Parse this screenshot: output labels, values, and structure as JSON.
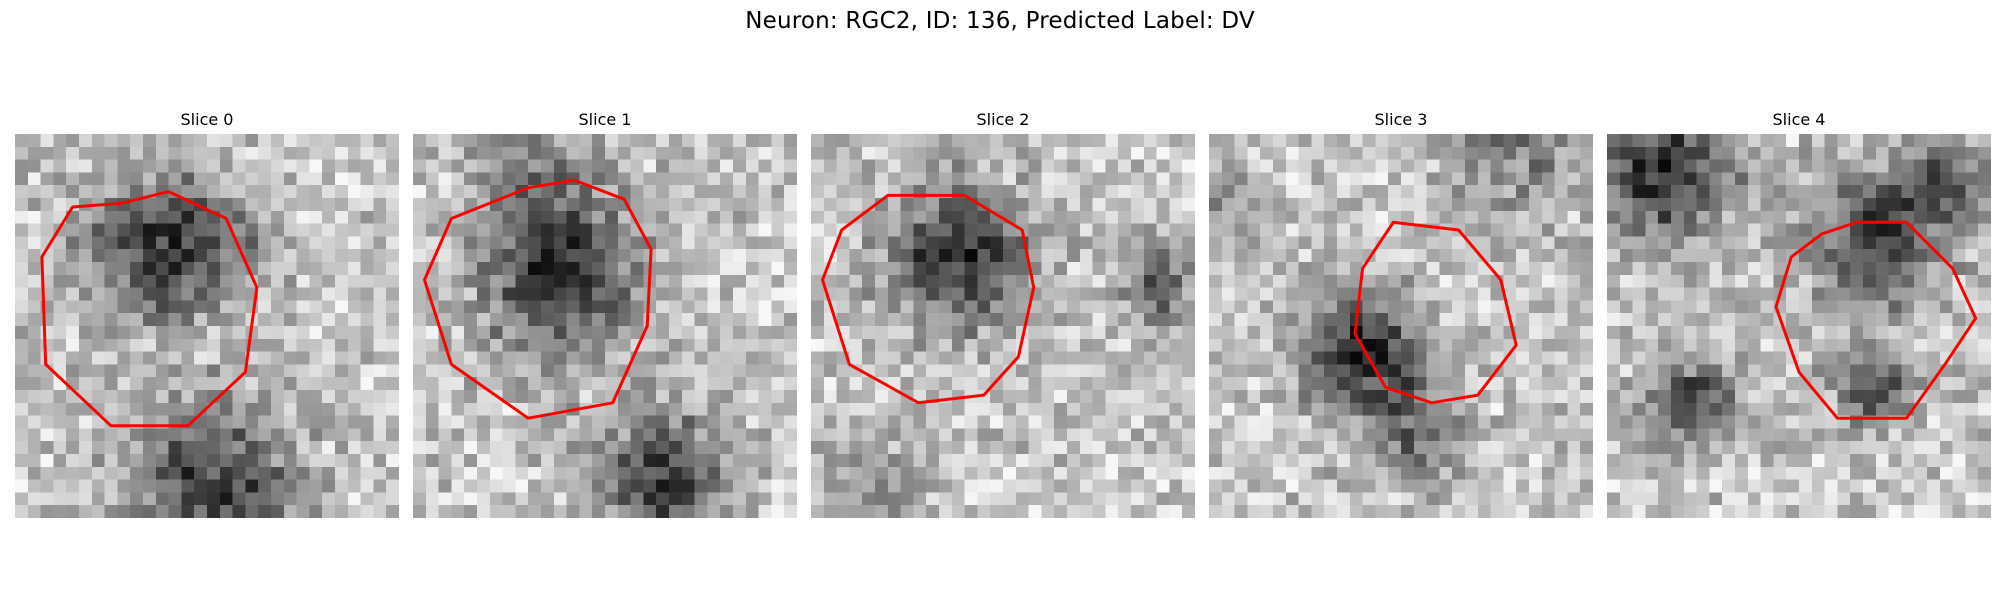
{
  "figure": {
    "title": "Neuron: RGC2, ID: 136, Predicted Label: DV"
  },
  "panels": [
    {
      "title": "Slice 0",
      "seed": 11,
      "blobs": [
        [
          0.38,
          0.3,
          0.22,
          0.95
        ],
        [
          0.52,
          0.92,
          0.26,
          0.85
        ],
        [
          0.6,
          0.28,
          0.12,
          0.35
        ]
      ],
      "contour": [
        [
          0.28,
          0.18
        ],
        [
          0.4,
          0.15
        ],
        [
          0.55,
          0.22
        ],
        [
          0.63,
          0.4
        ],
        [
          0.6,
          0.62
        ],
        [
          0.45,
          0.76
        ],
        [
          0.25,
          0.76
        ],
        [
          0.08,
          0.6
        ],
        [
          0.07,
          0.32
        ],
        [
          0.15,
          0.19
        ]
      ]
    },
    {
      "title": "Slice 1",
      "seed": 23,
      "blobs": [
        [
          0.38,
          0.38,
          0.24,
          0.95
        ],
        [
          0.65,
          0.9,
          0.2,
          0.85
        ],
        [
          0.3,
          0.1,
          0.2,
          0.4
        ]
      ],
      "contour": [
        [
          0.3,
          0.14
        ],
        [
          0.42,
          0.12
        ],
        [
          0.55,
          0.17
        ],
        [
          0.62,
          0.3
        ],
        [
          0.61,
          0.5
        ],
        [
          0.52,
          0.7
        ],
        [
          0.3,
          0.74
        ],
        [
          0.1,
          0.6
        ],
        [
          0.03,
          0.38
        ],
        [
          0.1,
          0.22
        ]
      ]
    },
    {
      "title": "Slice 2",
      "seed": 37,
      "blobs": [
        [
          0.38,
          0.32,
          0.21,
          1.0
        ],
        [
          0.9,
          0.4,
          0.12,
          0.7
        ],
        [
          0.15,
          0.95,
          0.18,
          0.35
        ]
      ],
      "contour": [
        [
          0.2,
          0.16
        ],
        [
          0.4,
          0.16
        ],
        [
          0.55,
          0.25
        ],
        [
          0.58,
          0.4
        ],
        [
          0.54,
          0.58
        ],
        [
          0.45,
          0.68
        ],
        [
          0.28,
          0.7
        ],
        [
          0.1,
          0.6
        ],
        [
          0.03,
          0.38
        ],
        [
          0.08,
          0.25
        ]
      ]
    },
    {
      "title": "Slice 3",
      "seed": 53,
      "blobs": [
        [
          0.4,
          0.57,
          0.18,
          1.0
        ],
        [
          0.55,
          0.78,
          0.15,
          0.6
        ],
        [
          0.8,
          0.05,
          0.2,
          0.45
        ],
        [
          0.05,
          0.2,
          0.12,
          0.35
        ]
      ],
      "contour": [
        [
          0.48,
          0.23
        ],
        [
          0.65,
          0.25
        ],
        [
          0.76,
          0.38
        ],
        [
          0.8,
          0.55
        ],
        [
          0.7,
          0.68
        ],
        [
          0.58,
          0.7
        ],
        [
          0.46,
          0.66
        ],
        [
          0.38,
          0.52
        ],
        [
          0.4,
          0.35
        ]
      ]
    },
    {
      "title": "Slice 4",
      "seed": 71,
      "blobs": [
        [
          0.15,
          0.1,
          0.22,
          0.95
        ],
        [
          0.7,
          0.28,
          0.2,
          0.9
        ],
        [
          0.22,
          0.7,
          0.14,
          0.8
        ],
        [
          0.7,
          0.65,
          0.12,
          0.75
        ],
        [
          0.88,
          0.12,
          0.14,
          0.7
        ]
      ],
      "contour": [
        [
          0.56,
          0.26
        ],
        [
          0.65,
          0.23
        ],
        [
          0.78,
          0.23
        ],
        [
          0.9,
          0.35
        ],
        [
          0.96,
          0.48
        ],
        [
          0.88,
          0.6
        ],
        [
          0.78,
          0.74
        ],
        [
          0.6,
          0.74
        ],
        [
          0.5,
          0.62
        ],
        [
          0.44,
          0.45
        ],
        [
          0.48,
          0.32
        ]
      ]
    }
  ]
}
